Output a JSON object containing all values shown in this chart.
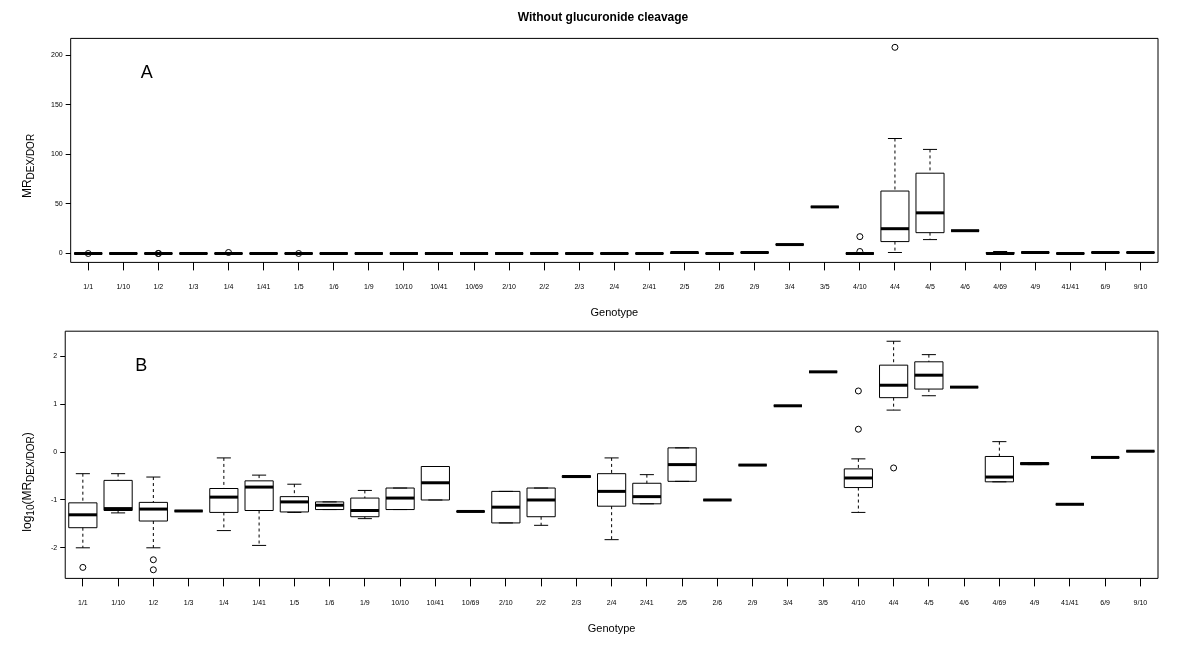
{
  "chart_data": [
    {
      "type": "box",
      "title": "Without glucuronide cleavage",
      "xlabel": "Genotype",
      "ylabel": "MR$_{DEX/DOR}$",
      "annotations": [
        "A"
      ],
      "categories": [
        "1/1",
        "1/10",
        "1/2",
        "1/3",
        "1/4",
        "1/41",
        "1/5",
        "1/6",
        "1/9",
        "10/10",
        "10/41",
        "10/69",
        "2/10",
        "2/2",
        "2/3",
        "2/4",
        "2/41",
        "2/5",
        "2/6",
        "2/9",
        "3/4",
        "3/5",
        "4/10",
        "4/4",
        "4/5",
        "4/6",
        "4/69",
        "4/9",
        "41/41",
        "6/9",
        "9/10"
      ],
      "ylim": [
        -9,
        217
      ],
      "yticks": [
        0,
        50,
        100,
        150,
        200
      ],
      "boxes": [
        {
          "low": 0,
          "q1": 0,
          "median": 0,
          "q3": 0,
          "high": 0,
          "outliers": [
            0
          ]
        },
        {
          "low": 0,
          "q1": 0,
          "median": 0,
          "q3": 0,
          "high": 0
        },
        {
          "low": 0,
          "q1": 0,
          "median": 0,
          "q3": 0,
          "high": 0,
          "outliers": [
            0,
            0
          ]
        },
        {
          "low": 0,
          "q1": 0,
          "median": 0,
          "q3": 0,
          "high": 0
        },
        {
          "low": 0,
          "q1": 0,
          "median": 0,
          "q3": 0,
          "high": 0,
          "outliers": [
            1
          ]
        },
        {
          "low": 0,
          "q1": 0,
          "median": 0,
          "q3": 0,
          "high": 0
        },
        {
          "low": 0,
          "q1": 0,
          "median": 0,
          "q3": 0,
          "high": 0,
          "outliers": [
            0
          ]
        },
        {
          "low": 0,
          "q1": 0,
          "median": 0,
          "q3": 0,
          "high": 0
        },
        {
          "low": 0,
          "q1": 0,
          "median": 0,
          "q3": 0,
          "high": 0
        },
        {
          "low": 0,
          "q1": 0,
          "median": 0,
          "q3": 0,
          "high": 0
        },
        {
          "low": 0,
          "q1": 0,
          "median": 0,
          "q3": 0,
          "high": 1
        },
        {
          "low": 0,
          "q1": 0,
          "median": 0,
          "q3": 0,
          "high": 0
        },
        {
          "low": 0,
          "q1": 0,
          "median": 0,
          "q3": 0,
          "high": 0
        },
        {
          "low": 0,
          "q1": 0,
          "median": 0,
          "q3": 0,
          "high": 0
        },
        {
          "low": 0,
          "q1": 0,
          "median": 0,
          "q3": 0,
          "high": 0
        },
        {
          "low": 0,
          "q1": 0,
          "median": 0,
          "q3": 0,
          "high": 1
        },
        {
          "low": 0,
          "q1": 0,
          "median": 0,
          "q3": 0,
          "high": 0
        },
        {
          "low": 0,
          "q1": 0,
          "median": 1,
          "q3": 1,
          "high": 1
        },
        {
          "low": 0,
          "q1": 0,
          "median": 0,
          "q3": 0,
          "high": 0
        },
        {
          "low": 1,
          "q1": 1,
          "median": 1,
          "q3": 1,
          "high": 1
        },
        {
          "low": 9,
          "q1": 9,
          "median": 9,
          "q3": 9,
          "high": 9
        },
        {
          "low": 47,
          "q1": 47,
          "median": 47,
          "q3": 47,
          "high": 47
        },
        {
          "low": 0,
          "q1": 0,
          "median": 0,
          "q3": 0,
          "high": 1,
          "outliers": [
            17,
            2
          ]
        },
        {
          "low": 1,
          "q1": 12,
          "median": 25,
          "q3": 63,
          "high": 116,
          "outliers": [
            208
          ]
        },
        {
          "low": 14,
          "q1": 21,
          "median": 41,
          "q3": 81,
          "high": 105
        },
        {
          "low": 23,
          "q1": 23,
          "median": 23,
          "q3": 23,
          "high": 23
        },
        {
          "low": 0,
          "q1": 0,
          "median": 0,
          "q3": 1,
          "high": 2
        },
        {
          "low": 1,
          "q1": 1,
          "median": 1,
          "q3": 1,
          "high": 1
        },
        {
          "low": 0,
          "q1": 0,
          "median": 0,
          "q3": 0,
          "high": 0
        },
        {
          "low": 1,
          "q1": 1,
          "median": 1,
          "q3": 1,
          "high": 1
        },
        {
          "low": 1,
          "q1": 1,
          "median": 1,
          "q3": 1,
          "high": 1
        }
      ]
    },
    {
      "type": "box",
      "xlabel": "Genotype",
      "ylabel": "log$_{10}$(MR$_{DEX/DOR}$)",
      "annotations": [
        "B"
      ],
      "categories": [
        "1/1",
        "1/10",
        "1/2",
        "1/3",
        "1/4",
        "1/41",
        "1/5",
        "1/6",
        "1/9",
        "10/10",
        "10/41",
        "10/69",
        "2/10",
        "2/2",
        "2/3",
        "2/4",
        "2/41",
        "2/5",
        "2/6",
        "2/9",
        "3/4",
        "3/5",
        "4/10",
        "4/4",
        "4/5",
        "4/6",
        "4/69",
        "4/9",
        "41/41",
        "6/9",
        "9/10"
      ],
      "ylim": [
        -2.64,
        2.53
      ],
      "yticks": [
        -2,
        -1,
        0,
        1,
        2
      ],
      "boxes": [
        {
          "low": -2.0,
          "q1": -1.58,
          "median": -1.31,
          "q3": -1.06,
          "high": -0.45,
          "outliers": [
            -2.41
          ]
        },
        {
          "low": -1.27,
          "q1": -1.22,
          "median": -1.18,
          "q3": -0.59,
          "high": -0.45
        },
        {
          "low": -2.0,
          "q1": -1.44,
          "median": -1.19,
          "q3": -1.05,
          "high": -0.52,
          "outliers": [
            -2.25,
            -2.46
          ]
        },
        {
          "low": -1.23,
          "q1": -1.23,
          "median": -1.23,
          "q3": -1.23,
          "high": -1.23
        },
        {
          "low": -1.64,
          "q1": -1.26,
          "median": -0.94,
          "q3": -0.76,
          "high": -0.12
        },
        {
          "low": -1.95,
          "q1": -1.22,
          "median": -0.73,
          "q3": -0.6,
          "high": -0.48
        },
        {
          "low": -1.26,
          "q1": -1.25,
          "median": -1.04,
          "q3": -0.93,
          "high": -0.67
        },
        {
          "low": -1.2,
          "q1": -1.2,
          "median": -1.11,
          "q3": -1.04,
          "high": -1.04
        },
        {
          "low": -1.39,
          "q1": -1.35,
          "median": -1.22,
          "q3": -0.96,
          "high": -0.8
        },
        {
          "low": -1.2,
          "q1": -1.2,
          "median": -0.96,
          "q3": -0.75,
          "high": -0.75
        },
        {
          "low": -1.0,
          "q1": -1.0,
          "median": -0.64,
          "q3": -0.3,
          "high": -0.3
        },
        {
          "low": -1.24,
          "q1": -1.24,
          "median": -1.24,
          "q3": -1.24,
          "high": -1.24
        },
        {
          "low": -1.48,
          "q1": -1.48,
          "median": -1.15,
          "q3": -0.82,
          "high": -0.82
        },
        {
          "low": -1.53,
          "q1": -1.35,
          "median": -1.0,
          "q3": -0.75,
          "high": -0.75
        },
        {
          "low": -0.53,
          "q1": -0.53,
          "median": -0.51,
          "q3": -0.49,
          "high": -0.49
        },
        {
          "low": -1.83,
          "q1": -1.13,
          "median": -0.82,
          "q3": -0.45,
          "high": -0.12
        },
        {
          "low": -1.08,
          "q1": -1.08,
          "median": -0.93,
          "q3": -0.65,
          "high": -0.47
        },
        {
          "low": -0.61,
          "q1": -0.61,
          "median": -0.26,
          "q3": 0.09,
          "high": 0.09
        },
        {
          "low": -1.0,
          "q1": -1.0,
          "median": -1.0,
          "q3": -1.0,
          "high": -1.0
        },
        {
          "low": -0.27,
          "q1": -0.27,
          "median": -0.27,
          "q3": -0.27,
          "high": -0.27
        },
        {
          "low": 0.97,
          "q1": 0.97,
          "median": 0.97,
          "q3": 0.97,
          "high": 0.97
        },
        {
          "low": 1.68,
          "q1": 1.68,
          "median": 1.68,
          "q3": 1.68,
          "high": 1.68
        },
        {
          "low": -1.26,
          "q1": -0.74,
          "median": -0.54,
          "q3": -0.35,
          "high": -0.14,
          "outliers": [
            1.28,
            0.48
          ]
        },
        {
          "low": 0.88,
          "q1": 1.14,
          "median": 1.4,
          "q3": 1.82,
          "high": 2.32,
          "outliers": [
            -0.33
          ]
        },
        {
          "low": 1.18,
          "q1": 1.32,
          "median": 1.61,
          "q3": 1.89,
          "high": 2.04
        },
        {
          "low": 1.36,
          "q1": 1.36,
          "median": 1.36,
          "q3": 1.36,
          "high": 1.36
        },
        {
          "low": -0.62,
          "q1": -0.62,
          "median": -0.52,
          "q3": -0.09,
          "high": 0.22
        },
        {
          "low": -0.26,
          "q1": -0.26,
          "median": -0.24,
          "q3": -0.22,
          "high": -0.22
        },
        {
          "low": -1.09,
          "q1": -1.09,
          "median": -1.09,
          "q3": -1.09,
          "high": -1.09
        },
        {
          "low": -0.11,
          "q1": -0.11,
          "median": -0.11,
          "q3": -0.11,
          "high": -0.11
        },
        {
          "low": 0.02,
          "q1": 0.02,
          "median": 0.02,
          "q3": 0.02,
          "high": 0.02
        }
      ]
    }
  ]
}
